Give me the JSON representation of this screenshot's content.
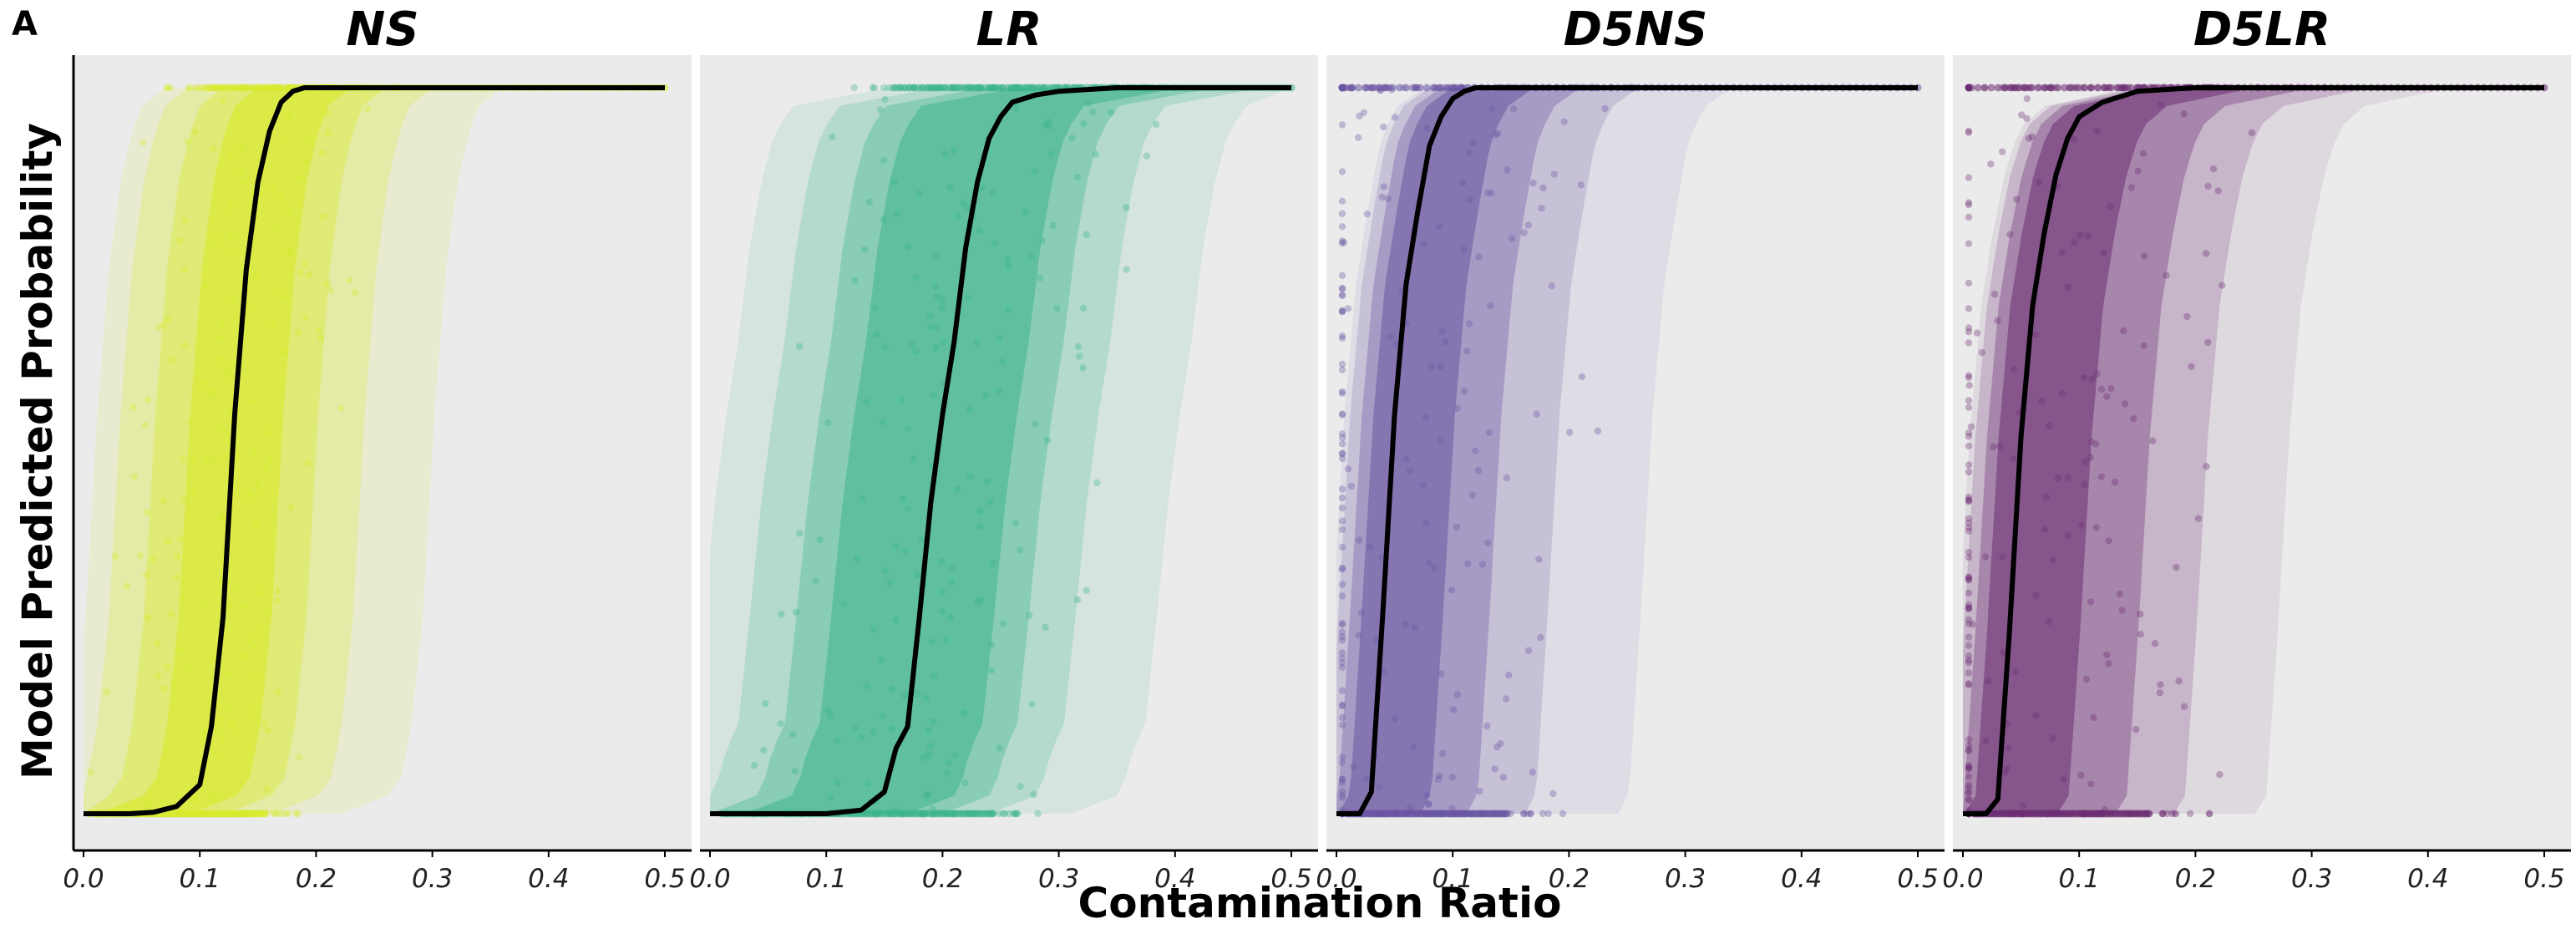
{
  "figure": {
    "panel_letter": "A",
    "xlabel": "Contamination Ratio",
    "ylabel": "Model Predicted Probability"
  },
  "chart_data": [
    {
      "type": "line",
      "title": "NS",
      "xlim": [
        0.0,
        0.5
      ],
      "ylim": [
        0.0,
        1.0
      ],
      "x_ticks": [
        "0.0",
        "0.1",
        "0.2",
        "0.3",
        "0.4",
        "0.5"
      ],
      "grid": false,
      "color": "#d8ea2e",
      "median_line": {
        "x": [
          0.0,
          0.02,
          0.04,
          0.06,
          0.08,
          0.1,
          0.11,
          0.12,
          0.13,
          0.14,
          0.15,
          0.16,
          0.17,
          0.18,
          0.19,
          0.2,
          0.22,
          0.25,
          0.3,
          0.35,
          0.4,
          0.45,
          0.5
        ],
        "y": [
          0.0,
          0.0,
          0.0,
          0.002,
          0.01,
          0.04,
          0.12,
          0.27,
          0.55,
          0.75,
          0.87,
          0.94,
          0.98,
          0.995,
          1.0,
          1.0,
          1.0,
          1.0,
          1.0,
          1.0,
          1.0,
          1.0,
          1.0
        ]
      },
      "bands": [
        {
          "low": 0.09,
          "high": 0.17,
          "opacity": 0.65
        },
        {
          "low": 0.06,
          "high": 0.2,
          "opacity": 0.4
        },
        {
          "low": 0.03,
          "high": 0.24,
          "opacity": 0.25
        },
        {
          "low": 0.01,
          "high": 0.3,
          "opacity": 0.15
        }
      ],
      "scatter_spread": 0.07
    },
    {
      "type": "line",
      "title": "LR",
      "xlim": [
        0.0,
        0.5
      ],
      "ylim": [
        0.0,
        1.0
      ],
      "x_ticks": [
        "0.0",
        "0.1",
        "0.2",
        "0.3",
        "0.4",
        "0.5"
      ],
      "grid": false,
      "color": "#3db58c",
      "median_line": {
        "x": [
          0.0,
          0.05,
          0.1,
          0.13,
          0.15,
          0.16,
          0.17,
          0.18,
          0.19,
          0.2,
          0.21,
          0.22,
          0.23,
          0.24,
          0.25,
          0.26,
          0.28,
          0.3,
          0.35,
          0.4,
          0.45,
          0.5
        ],
        "y": [
          0.0,
          0.0,
          0.0,
          0.005,
          0.03,
          0.09,
          0.12,
          0.27,
          0.43,
          0.55,
          0.65,
          0.78,
          0.87,
          0.93,
          0.96,
          0.98,
          0.99,
          0.995,
          1.0,
          1.0,
          1.0,
          1.0
        ]
      },
      "bands": [
        {
          "low": 0.12,
          "high": 0.26,
          "opacity": 0.55
        },
        {
          "low": 0.09,
          "high": 0.29,
          "opacity": 0.35
        },
        {
          "low": 0.05,
          "high": 0.33,
          "opacity": 0.22
        },
        {
          "low": 0.01,
          "high": 0.4,
          "opacity": 0.12
        }
      ],
      "scatter_spread": 0.1
    },
    {
      "type": "line",
      "title": "D5NS",
      "xlim": [
        0.0,
        0.5
      ],
      "ylim": [
        0.0,
        1.0
      ],
      "x_ticks": [
        "0.0",
        "0.1",
        "0.2",
        "0.3",
        "0.4",
        "0.5"
      ],
      "grid": false,
      "color": "#6a55a2",
      "median_line": {
        "x": [
          0.0,
          0.02,
          0.03,
          0.04,
          0.05,
          0.06,
          0.07,
          0.08,
          0.09,
          0.1,
          0.11,
          0.12,
          0.13,
          0.15,
          0.2,
          0.3,
          0.4,
          0.5
        ],
        "y": [
          0.0,
          0.0,
          0.03,
          0.28,
          0.55,
          0.73,
          0.83,
          0.92,
          0.96,
          0.985,
          0.995,
          1.0,
          1.0,
          1.0,
          1.0,
          1.0,
          1.0,
          1.0
        ]
      },
      "bands": [
        {
          "low": 0.03,
          "high": 0.1,
          "opacity": 0.55
        },
        {
          "low": 0.02,
          "high": 0.14,
          "opacity": 0.35
        },
        {
          "low": 0.01,
          "high": 0.19,
          "opacity": 0.2
        },
        {
          "low": 0.005,
          "high": 0.27,
          "opacity": 0.1
        }
      ],
      "scatter_spread": 0.12
    },
    {
      "type": "line",
      "title": "D5LR",
      "xlim": [
        0.0,
        0.5
      ],
      "ylim": [
        0.0,
        1.0
      ],
      "x_ticks": [
        "0.0",
        "0.1",
        "0.2",
        "0.3",
        "0.4",
        "0.5"
      ],
      "grid": false,
      "color": "#6c2d72",
      "median_line": {
        "x": [
          0.0,
          0.02,
          0.03,
          0.04,
          0.05,
          0.06,
          0.07,
          0.08,
          0.09,
          0.1,
          0.11,
          0.12,
          0.13,
          0.14,
          0.15,
          0.2,
          0.3,
          0.4,
          0.5
        ],
        "y": [
          0.0,
          0.0,
          0.02,
          0.25,
          0.52,
          0.7,
          0.8,
          0.88,
          0.93,
          0.96,
          0.97,
          0.98,
          0.985,
          0.99,
          0.995,
          1.0,
          1.0,
          1.0,
          1.0
        ]
      },
      "bands": [
        {
          "low": 0.03,
          "high": 0.11,
          "opacity": 0.55
        },
        {
          "low": 0.02,
          "high": 0.16,
          "opacity": 0.35
        },
        {
          "low": 0.01,
          "high": 0.21,
          "opacity": 0.2
        },
        {
          "low": 0.005,
          "high": 0.28,
          "opacity": 0.1
        }
      ],
      "scatter_spread": 0.13
    }
  ]
}
